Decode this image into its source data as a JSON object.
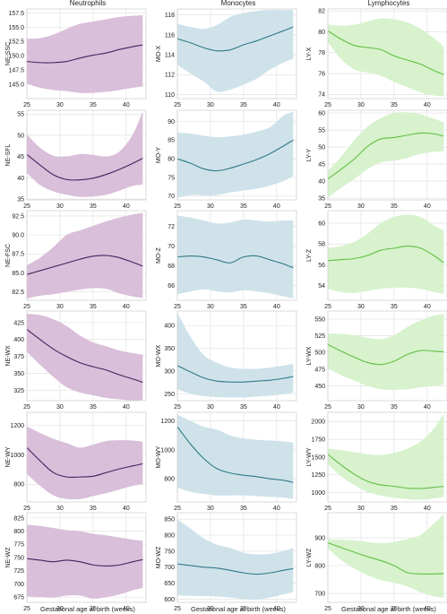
{
  "figure": {
    "column_titles": [
      "Neutrophils",
      "Monocytes",
      "Lymphocytes"
    ],
    "xlabel": "Gestational age at birth (weeks)"
  },
  "colors": {
    "Neutrophils": {
      "line": "#4b1f5e",
      "band": "#d9bfd9"
    },
    "Monocytes": {
      "line": "#2f7a85",
      "band": "#cfe2ea"
    },
    "Lymphocytes": {
      "line": "#63bf45",
      "band": "#d7f2cd"
    },
    "grid": "#dedede",
    "frame": "#cccccc"
  },
  "chart_data": [
    {
      "type": "area",
      "column": "Neutrophils",
      "ylabel": "NE-SSC",
      "xlim": [
        25,
        43
      ],
      "ylim": [
        142.5,
        158.2
      ],
      "xticks": [
        25,
        30,
        35,
        40
      ],
      "yticks": [
        145.0,
        147.5,
        150.0,
        152.5,
        155.0,
        157.5
      ],
      "ytick_labels": [
        "145.0",
        "147.5",
        "150.0",
        "152.5",
        "155.0",
        "157.5"
      ],
      "x": [
        25,
        27,
        29,
        31,
        33,
        35,
        37,
        39,
        41,
        42.5
      ],
      "mean": [
        149.0,
        148.8,
        148.8,
        149.0,
        149.6,
        150.1,
        150.5,
        151.1,
        151.6,
        151.9
      ],
      "upper": [
        153.0,
        153.1,
        153.7,
        154.7,
        155.6,
        156.0,
        156.4,
        156.8,
        157.0,
        157.1
      ],
      "lower": [
        145.1,
        144.4,
        144.0,
        143.8,
        143.5,
        143.5,
        143.7,
        144.0,
        144.4,
        144.6
      ]
    },
    {
      "type": "area",
      "column": "Monocytes",
      "ylabel": "MO-X",
      "xlim": [
        25,
        43
      ],
      "ylim": [
        109.6,
        118.6
      ],
      "xticks": [
        25,
        30,
        35,
        40
      ],
      "yticks": [
        110,
        112,
        114,
        116,
        118
      ],
      "ytick_labels": [
        "110",
        "112",
        "114",
        "116",
        "118"
      ],
      "x": [
        25,
        27,
        29,
        31,
        33,
        35,
        37,
        39,
        41,
        42.5
      ],
      "mean": [
        115.6,
        115.2,
        114.7,
        114.4,
        114.5,
        115.0,
        115.4,
        115.9,
        116.4,
        116.8
      ],
      "upper": [
        117.1,
        116.8,
        116.6,
        117.0,
        117.8,
        118.2,
        118.4,
        118.5,
        118.5,
        118.5
      ],
      "lower": [
        113.0,
        112.1,
        111.3,
        110.3,
        110.5,
        111.0,
        111.6,
        112.5,
        113.2,
        113.6
      ]
    },
    {
      "type": "area",
      "column": "Lymphocytes",
      "ylabel": "LY-X",
      "xlim": [
        25,
        43
      ],
      "ylim": [
        73.6,
        82.2
      ],
      "xticks": [
        25,
        30,
        35,
        40
      ],
      "yticks": [
        74,
        76,
        78,
        80,
        82
      ],
      "ytick_labels": [
        "74",
        "76",
        "78",
        "80",
        "82"
      ],
      "x": [
        25,
        27,
        29,
        31,
        33,
        35,
        37,
        39,
        41,
        42.5
      ],
      "mean": [
        80.1,
        79.3,
        78.7,
        78.5,
        78.3,
        77.7,
        77.3,
        76.9,
        76.3,
        75.9
      ],
      "upper": [
        80.7,
        80.6,
        80.7,
        81.0,
        81.3,
        81.2,
        80.9,
        80.3,
        79.4,
        78.6
      ],
      "lower": [
        79.0,
        77.4,
        76.4,
        76.1,
        75.8,
        75.2,
        74.7,
        74.2,
        73.9,
        73.8
      ]
    },
    {
      "type": "area",
      "column": "Neutrophils",
      "ylabel": "NE-SFL",
      "xlim": [
        25,
        43
      ],
      "ylim": [
        34.8,
        55.9
      ],
      "xticks": [
        25,
        30,
        35,
        40
      ],
      "yticks": [
        35,
        40,
        45,
        50,
        55
      ],
      "ytick_labels": [
        "35",
        "40",
        "45",
        "50",
        "55"
      ],
      "x": [
        25,
        27,
        29,
        31,
        33,
        35,
        37,
        39,
        41,
        42.5
      ],
      "mean": [
        45.5,
        43.0,
        40.7,
        39.6,
        39.5,
        39.9,
        40.8,
        42.0,
        43.4,
        44.6
      ],
      "upper": [
        50.2,
        47.1,
        45.2,
        45.0,
        45.6,
        45.4,
        45.0,
        46.2,
        50.2,
        55.6
      ],
      "lower": [
        41.1,
        38.3,
        36.8,
        36.0,
        35.5,
        35.6,
        36.0,
        37.0,
        38.1,
        38.4
      ]
    },
    {
      "type": "area",
      "column": "Monocytes",
      "ylabel": "MO-Y",
      "xlim": [
        25,
        43
      ],
      "ylim": [
        69,
        93
      ],
      "xticks": [
        25,
        30,
        35,
        40
      ],
      "yticks": [
        70,
        75,
        80,
        85,
        90
      ],
      "ytick_labels": [
        "70",
        "75",
        "80",
        "85",
        "90"
      ],
      "x": [
        25,
        27,
        29,
        31,
        33,
        35,
        37,
        39,
        41,
        42.5
      ],
      "mean": [
        80.0,
        78.8,
        77.3,
        76.8,
        77.5,
        78.6,
        79.8,
        81.4,
        83.4,
        85.0
      ],
      "upper": [
        87.0,
        86.8,
        86.2,
        85.8,
        86.0,
        86.5,
        87.3,
        88.5,
        91.5,
        92.6
      ],
      "lower": [
        69.6,
        70.3,
        70.2,
        70.3,
        71.0,
        71.5,
        72.0,
        72.8,
        74.0,
        75.4
      ]
    },
    {
      "type": "area",
      "column": "Lymphocytes",
      "ylabel": "LY-Y",
      "xlim": [
        25,
        43
      ],
      "ylim": [
        34.5,
        60.8
      ],
      "xticks": [
        25,
        30,
        35,
        40
      ],
      "yticks": [
        35,
        40,
        45,
        50,
        55,
        60
      ],
      "ytick_labels": [
        "35",
        "40",
        "45",
        "50",
        "55",
        "60"
      ],
      "x": [
        25,
        27,
        29,
        31,
        33,
        35,
        37,
        39,
        41,
        42.5
      ],
      "mean": [
        40.6,
        43.5,
        46.5,
        50.2,
        52.4,
        52.8,
        53.5,
        54.1,
        53.9,
        53.2
      ],
      "upper": [
        43.0,
        47.2,
        52.0,
        56.0,
        58.5,
        60.0,
        60.2,
        59.6,
        58.3,
        57.3
      ],
      "lower": [
        35.2,
        38.0,
        40.6,
        43.5,
        45.5,
        46.0,
        46.8,
        48.0,
        48.6,
        48.8
      ]
    },
    {
      "type": "area",
      "column": "Neutrophils",
      "ylabel": "NE-FSC",
      "xlim": [
        25,
        43
      ],
      "ylim": [
        81.4,
        93.2
      ],
      "xticks": [
        25,
        30,
        35,
        40
      ],
      "yticks": [
        82.5,
        85.0,
        87.5,
        90.0,
        92.5
      ],
      "ytick_labels": [
        "82.5",
        "85.0",
        "87.5",
        "90.0",
        "92.5"
      ],
      "x": [
        25,
        27,
        29,
        31,
        33,
        35,
        37,
        39,
        41,
        42.5
      ],
      "mean": [
        84.8,
        85.3,
        85.8,
        86.3,
        86.8,
        87.2,
        87.3,
        87.0,
        86.4,
        85.9
      ],
      "upper": [
        86.0,
        87.0,
        88.4,
        90.0,
        90.6,
        91.2,
        91.8,
        92.3,
        92.7,
        92.9
      ],
      "lower": [
        81.6,
        82.0,
        82.2,
        82.5,
        82.8,
        83.0,
        82.9,
        82.3,
        81.9,
        81.7
      ]
    },
    {
      "type": "area",
      "column": "Monocytes",
      "ylabel": "MO-Z",
      "xlim": [
        25,
        43
      ],
      "ylim": [
        64.5,
        73.6
      ],
      "xticks": [
        25,
        30,
        35,
        40
      ],
      "yticks": [
        66,
        68,
        70,
        72
      ],
      "ytick_labels": [
        "66",
        "68",
        "70",
        "72"
      ],
      "x": [
        25,
        27,
        29,
        31,
        33,
        35,
        37,
        39,
        41,
        42.5
      ],
      "mean": [
        68.9,
        69.0,
        68.9,
        68.6,
        68.3,
        68.9,
        69.0,
        68.6,
        68.2,
        67.8
      ],
      "upper": [
        73.1,
        72.9,
        72.6,
        72.3,
        72.4,
        72.7,
        72.6,
        72.5,
        72.6,
        72.6
      ],
      "lower": [
        65.1,
        65.4,
        65.6,
        65.4,
        65.3,
        65.5,
        65.4,
        65.2,
        64.9,
        64.7
      ]
    },
    {
      "type": "area",
      "column": "Lymphocytes",
      "ylabel": "LY-Z",
      "xlim": [
        25,
        43
      ],
      "ylim": [
        52.6,
        61.2
      ],
      "xticks": [
        25,
        30,
        35,
        40
      ],
      "yticks": [
        54,
        56,
        58,
        60
      ],
      "ytick_labels": [
        "54",
        "56",
        "58",
        "60"
      ],
      "x": [
        25,
        27,
        29,
        31,
        33,
        35,
        37,
        39,
        41,
        42.5
      ],
      "mean": [
        56.4,
        56.5,
        56.6,
        56.9,
        57.4,
        57.6,
        57.8,
        57.6,
        56.9,
        56.2
      ],
      "upper": [
        57.6,
        57.8,
        58.2,
        59.0,
        60.0,
        60.6,
        60.8,
        60.6,
        59.8,
        59.3
      ],
      "lower": [
        53.7,
        53.4,
        53.3,
        53.5,
        53.7,
        53.8,
        53.8,
        53.7,
        53.4,
        53.2
      ]
    },
    {
      "type": "area",
      "column": "Neutrophils",
      "ylabel": "NE-WX",
      "xlim": [
        25,
        43
      ],
      "ylim": [
        310,
        442
      ],
      "xticks": [
        25,
        30,
        35,
        40
      ],
      "yticks": [
        325,
        350,
        375,
        400,
        425
      ],
      "ytick_labels": [
        "325",
        "350",
        "375",
        "400",
        "425"
      ],
      "x": [
        25,
        27,
        29,
        31,
        33,
        35,
        37,
        39,
        41,
        42.5
      ],
      "mean": [
        415,
        400,
        386,
        375,
        366,
        360,
        355,
        348,
        342,
        337
      ],
      "upper": [
        438,
        436,
        430,
        420,
        406,
        396,
        390,
        384,
        380,
        378
      ],
      "lower": [
        382,
        363,
        345,
        330,
        322,
        318,
        314,
        312,
        310,
        311
      ]
    },
    {
      "type": "area",
      "column": "Monocytes",
      "ylabel": "MO-WX",
      "xlim": [
        25,
        43
      ],
      "ylim": [
        235,
        432
      ],
      "xticks": [
        25,
        30,
        35,
        40
      ],
      "yticks": [
        250,
        300,
        350,
        400
      ],
      "ytick_labels": [
        "250",
        "300",
        "350",
        "400"
      ],
      "x": [
        25,
        27,
        29,
        31,
        33,
        35,
        37,
        39,
        41,
        42.5
      ],
      "mean": [
        312,
        298,
        285,
        278,
        276,
        276,
        278,
        280,
        284,
        288
      ],
      "upper": [
        428,
        375,
        335,
        318,
        308,
        305,
        305,
        308,
        312,
        316
      ],
      "lower": [
        260,
        250,
        245,
        243,
        242,
        242,
        244,
        246,
        249,
        252
      ]
    },
    {
      "type": "area",
      "column": "Lymphocytes",
      "ylabel": "LY-WX",
      "xlim": [
        25,
        43
      ],
      "ylim": [
        428,
        562
      ],
      "xticks": [
        25,
        30,
        35,
        40
      ],
      "yticks": [
        450,
        475,
        500,
        525,
        550
      ],
      "ytick_labels": [
        "450",
        "475",
        "500",
        "525",
        "550"
      ],
      "x": [
        25,
        27,
        29,
        31,
        33,
        35,
        37,
        39,
        41,
        42.5
      ],
      "mean": [
        512,
        502,
        493,
        485,
        482,
        487,
        497,
        503,
        502,
        501
      ],
      "upper": [
        528,
        528,
        526,
        522,
        520,
        526,
        538,
        548,
        555,
        558
      ],
      "lower": [
        476,
        466,
        458,
        450,
        445,
        444,
        445,
        448,
        450,
        452
      ]
    },
    {
      "type": "area",
      "column": "Neutrophils",
      "ylabel": "NE-WY",
      "xlim": [
        25,
        43
      ],
      "ylim": [
        680,
        1290
      ],
      "xticks": [
        25,
        30,
        35,
        40
      ],
      "yticks": [
        800,
        1000,
        1200
      ],
      "ytick_labels": [
        "800",
        "1000",
        "1200"
      ],
      "x": [
        25,
        27,
        29,
        31,
        33,
        35,
        37,
        39,
        41,
        42.5
      ],
      "mean": [
        1050,
        960,
        880,
        850,
        850,
        855,
        880,
        905,
        925,
        940
      ],
      "upper": [
        1195,
        1150,
        1110,
        1080,
        1050,
        1070,
        1095,
        1100,
        1098,
        1090
      ],
      "lower": [
        870,
        790,
        725,
        700,
        700,
        720,
        740,
        765,
        790,
        800
      ]
    },
    {
      "type": "area",
      "column": "Monocytes",
      "ylabel": "MO-WY",
      "xlim": [
        25,
        43
      ],
      "ylim": [
        640,
        1260
      ],
      "xticks": [
        25,
        30,
        35,
        40
      ],
      "yticks": [
        800,
        1000,
        1200
      ],
      "ytick_labels": [
        "800",
        "1000",
        "1200"
      ],
      "x": [
        25,
        27,
        29,
        31,
        33,
        35,
        37,
        39,
        41,
        42.5
      ],
      "mean": [
        1160,
        1040,
        940,
        870,
        840,
        825,
        815,
        800,
        790,
        775
      ],
      "upper": [
        1245,
        1200,
        1160,
        1140,
        1100,
        1080,
        1070,
        1065,
        1060,
        1050
      ],
      "lower": [
        740,
        710,
        695,
        685,
        685,
        685,
        680,
        675,
        670,
        660
      ]
    },
    {
      "type": "area",
      "column": "Lymphocytes",
      "ylabel": "LY-WY",
      "xlim": [
        25,
        43
      ],
      "ylim": [
        870,
        2130
      ],
      "xticks": [
        25,
        30,
        35,
        40
      ],
      "yticks": [
        1000,
        1250,
        1500,
        1750,
        2000
      ],
      "ytick_labels": [
        "1000",
        "1250",
        "1500",
        "1750",
        "2000"
      ],
      "x": [
        25,
        27,
        29,
        31,
        33,
        35,
        37,
        39,
        41,
        42.5
      ],
      "mean": [
        1540,
        1390,
        1260,
        1160,
        1110,
        1090,
        1065,
        1060,
        1075,
        1090
      ],
      "upper": [
        1620,
        1600,
        1570,
        1540,
        1530,
        1560,
        1620,
        1720,
        1900,
        2110
      ],
      "lower": [
        1400,
        1230,
        1110,
        1010,
        960,
        930,
        910,
        900,
        920,
        940
      ]
    },
    {
      "type": "area",
      "column": "Neutrophils",
      "ylabel": "NE-WZ",
      "xlim": [
        25,
        43
      ],
      "ylim": [
        665,
        835
      ],
      "xticks": [
        25,
        30,
        35,
        40
      ],
      "yticks": [
        675,
        700,
        725,
        750,
        775,
        800,
        825
      ],
      "ytick_labels": [
        "675",
        "700",
        "725",
        "750",
        "775",
        "800",
        "825"
      ],
      "x": [
        25,
        27,
        29,
        31,
        33,
        35,
        37,
        39,
        41,
        42.5
      ],
      "mean": [
        748,
        745,
        742,
        745,
        742,
        736,
        734,
        736,
        742,
        746
      ],
      "upper": [
        812,
        810,
        806,
        802,
        800,
        795,
        792,
        788,
        784,
        782
      ],
      "lower": [
        676,
        675,
        674,
        678,
        678,
        672,
        675,
        680,
        688,
        692
      ]
    },
    {
      "type": "area",
      "column": "Monocytes",
      "ylabel": "MO-WZ",
      "xlim": [
        25,
        43
      ],
      "ylim": [
        590,
        870
      ],
      "xticks": [
        25,
        30,
        35,
        40
      ],
      "yticks": [
        600,
        650,
        700,
        750,
        800,
        850
      ],
      "ytick_labels": [
        "600",
        "650",
        "700",
        "750",
        "800",
        "850"
      ],
      "x": [
        25,
        27,
        29,
        31,
        33,
        35,
        37,
        39,
        41,
        42.5
      ],
      "mean": [
        710,
        705,
        700,
        697,
        690,
        682,
        678,
        682,
        690,
        695
      ],
      "upper": [
        850,
        820,
        790,
        770,
        760,
        745,
        740,
        742,
        750,
        760
      ],
      "lower": [
        612,
        610,
        610,
        608,
        605,
        600,
        598,
        605,
        615,
        622
      ]
    },
    {
      "type": "area",
      "column": "Lymphocytes",
      "ylabel": "LY-WZ",
      "xlim": [
        25,
        43
      ],
      "ylim": [
        668,
        990
      ],
      "xticks": [
        25,
        30,
        35,
        40
      ],
      "yticks": [
        700,
        800,
        900
      ],
      "ytick_labels": [
        "700",
        "800",
        "900"
      ],
      "x": [
        25,
        27,
        29,
        31,
        33,
        35,
        37,
        39,
        41,
        42.5
      ],
      "mean": [
        882,
        865,
        848,
        832,
        818,
        800,
        775,
        770,
        770,
        772
      ],
      "upper": [
        895,
        893,
        890,
        885,
        880,
        885,
        895,
        910,
        950,
        985
      ],
      "lower": [
        862,
        820,
        790,
        765,
        748,
        738,
        725,
        705,
        690,
        685
      ]
    }
  ]
}
